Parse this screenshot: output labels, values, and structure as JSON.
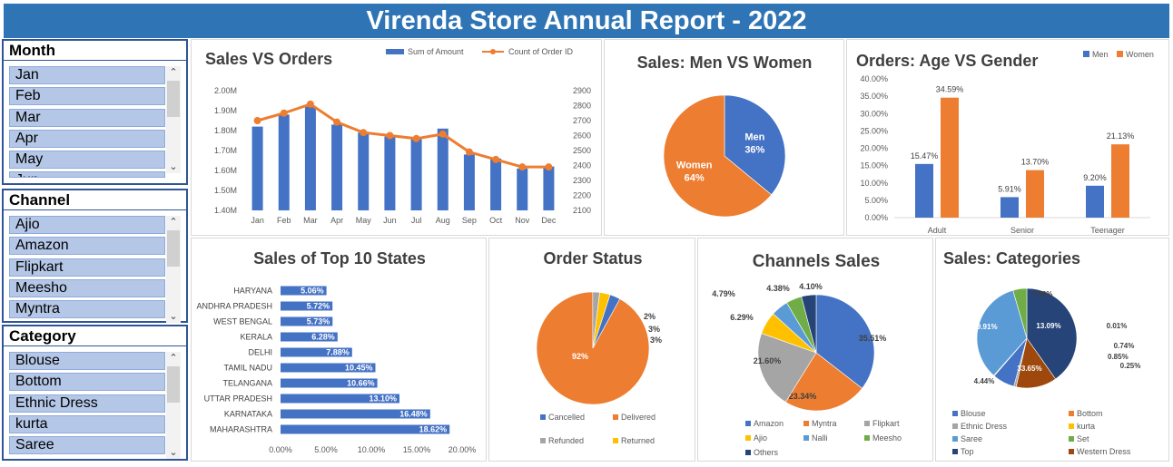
{
  "title": "Virenda Store Annual Report - 2022",
  "slicers": {
    "month": {
      "header": "Month",
      "items": [
        "Jan",
        "Feb",
        "Mar",
        "Apr",
        "May",
        "Jun"
      ]
    },
    "channel": {
      "header": "Channel",
      "items": [
        "Ajio",
        "Amazon",
        "Flipkart",
        "Meesho",
        "Myntra"
      ]
    },
    "category": {
      "header": "Category",
      "items": [
        "Blouse",
        "Bottom",
        "Ethnic Dress",
        "kurta",
        "Saree"
      ]
    }
  },
  "colors": {
    "blue": "#4472c4",
    "orange": "#ed7d31",
    "gray": "#a5a5a5",
    "yellow": "#ffc000",
    "lightblue": "#5b9bd5",
    "green": "#70ad47",
    "navy": "#264478",
    "brown": "#9e480e",
    "title_bar": "#2f75b5"
  },
  "chart_data": [
    {
      "id": "sales_vs_orders",
      "type": "bar",
      "title": "Sales VS Orders",
      "categories": [
        "Jan",
        "Feb",
        "Mar",
        "Apr",
        "May",
        "Jun",
        "Jul",
        "Aug",
        "Sep",
        "Oct",
        "Nov",
        "Dec"
      ],
      "series": [
        {
          "name": "Sum of Amount",
          "type": "bar",
          "axis": "left",
          "values": [
            1.82,
            1.88,
            1.92,
            1.83,
            1.79,
            1.77,
            1.76,
            1.81,
            1.68,
            1.66,
            1.61,
            1.62
          ]
        },
        {
          "name": "Count of Order ID",
          "type": "line",
          "axis": "right",
          "values": [
            2700,
            2750,
            2810,
            2690,
            2620,
            2600,
            2580,
            2610,
            2490,
            2440,
            2390,
            2390
          ]
        }
      ],
      "yticks_left": [
        "1.40M",
        "1.50M",
        "1.60M",
        "1.70M",
        "1.80M",
        "1.90M",
        "2.00M"
      ],
      "ylim_left": [
        1.4,
        2.0
      ],
      "yticks_right": [
        "2100",
        "2200",
        "2300",
        "2400",
        "2500",
        "2600",
        "2700",
        "2800",
        "2900"
      ],
      "ylim_right": [
        2100,
        2900
      ],
      "legend": "top"
    },
    {
      "id": "men_vs_women",
      "type": "pie",
      "title": "Sales: Men VS Women",
      "labels": [
        "Men",
        "Women"
      ],
      "values": [
        36,
        64
      ],
      "display": [
        "36%",
        "64%"
      ]
    },
    {
      "id": "age_vs_gender",
      "type": "bar",
      "title": "Orders: Age VS Gender",
      "categories": [
        "Adult",
        "Senior",
        "Teenager"
      ],
      "series": [
        {
          "name": "Men",
          "values": [
            15.47,
            5.91,
            9.2
          ],
          "labels": [
            "15.47%",
            "5.91%",
            "9.20%"
          ]
        },
        {
          "name": "Women",
          "values": [
            34.59,
            13.7,
            21.13
          ],
          "labels": [
            "34.59%",
            "13.70%",
            "21.13%"
          ]
        }
      ],
      "yticks": [
        "0.00%",
        "5.00%",
        "10.00%",
        "15.00%",
        "20.00%",
        "25.00%",
        "30.00%",
        "35.00%",
        "40.00%"
      ],
      "ylim": [
        0,
        40
      ],
      "legend": "top-right"
    },
    {
      "id": "top_states",
      "type": "bar",
      "orientation": "horizontal",
      "title": "Sales of Top 10 States",
      "categories": [
        "HARYANA",
        "ANDHRA PRADESH",
        "WEST BENGAL",
        "KERALA",
        "DELHI",
        "TAMIL NADU",
        "TELANGANA",
        "UTTAR PRADESH",
        "KARNATAKA",
        "MAHARASHTRA"
      ],
      "values": [
        5.06,
        5.72,
        5.73,
        6.28,
        7.88,
        10.45,
        10.66,
        13.1,
        16.48,
        18.62
      ],
      "labels": [
        "5.06%",
        "5.72%",
        "5.73%",
        "6.28%",
        "7.88%",
        "10.45%",
        "10.66%",
        "13.10%",
        "16.48%",
        "18.62%"
      ],
      "xticks": [
        "0.00%",
        "5.00%",
        "10.00%",
        "15.00%",
        "20.00%"
      ],
      "xlim": [
        0,
        20
      ]
    },
    {
      "id": "order_status",
      "type": "pie",
      "title": "Order Status",
      "labels": [
        "Cancelled",
        "Delivered",
        "Refunded",
        "Returned"
      ],
      "values": [
        3,
        92,
        2,
        3
      ],
      "display": [
        "3%",
        "92%",
        "2%",
        "3%"
      ],
      "legend": "bottom"
    },
    {
      "id": "channels_sales",
      "type": "pie",
      "title": "Channels Sales",
      "labels": [
        "Amazon",
        "Myntra",
        "Flipkart",
        "Ajio",
        "Nalli",
        "Meesho",
        "Others"
      ],
      "values": [
        35.51,
        23.34,
        21.6,
        6.29,
        4.79,
        4.38,
        4.1
      ],
      "display": [
        "35.51%",
        "23.34%",
        "21.60%",
        "6.29%",
        "4.79%",
        "4.38%",
        "4.10%"
      ],
      "legend": "bottom"
    },
    {
      "id": "categories",
      "type": "pie",
      "title": "Sales: Categories",
      "labels": [
        "Blouse",
        "Bottom",
        "Ethnic Dress",
        "kurta",
        "Saree",
        "Set",
        "Top",
        "Western Dress"
      ],
      "values": [
        7.06,
        0.01,
        0.74,
        0.25,
        33.65,
        4.44,
        39.91,
        13.09
      ],
      "display": [
        "7.06%",
        "0.01%",
        "0.74%",
        "0.25%",
        "33.65%",
        "4.44%",
        "39.91%",
        "13.09%"
      ],
      "extra_label": "0.85%",
      "legend": "bottom"
    }
  ]
}
